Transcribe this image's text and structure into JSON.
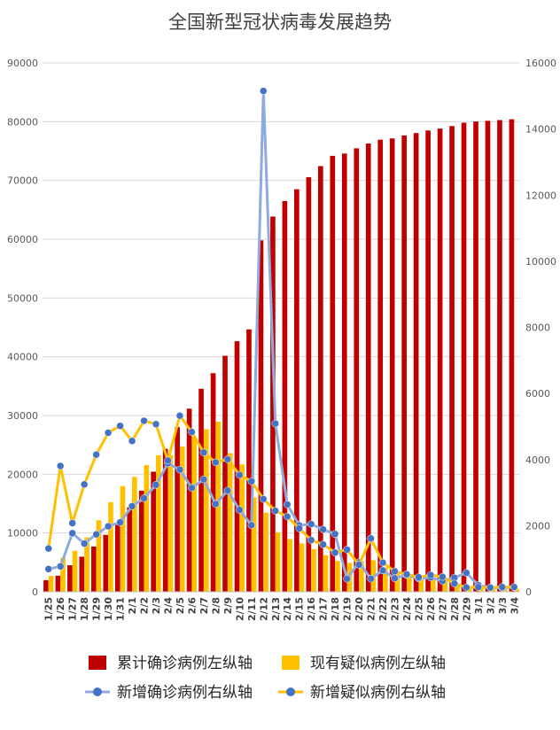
{
  "chart_data": {
    "type": "bar",
    "title": "全国新型冠状病毒发展趋势",
    "x": [
      "1/25",
      "1/26",
      "1/27",
      "1/28",
      "1/29",
      "1/30",
      "1/31",
      "2/1",
      "2/2",
      "2/3",
      "2/4",
      "2/5",
      "2/6",
      "2/7",
      "2/8",
      "2/9",
      "2/10",
      "2/11",
      "2/12",
      "2/13",
      "2/14",
      "2/15",
      "2/16",
      "2/17",
      "2/18",
      "2/19",
      "2/20",
      "2/21",
      "2/22",
      "2/23",
      "2/24",
      "2/25",
      "2/26",
      "2/27",
      "2/28",
      "2/29",
      "3/1",
      "3/2",
      "3/3",
      "3/4"
    ],
    "y_left": {
      "min": 0,
      "max": 90000,
      "ticks": [
        0,
        10000,
        20000,
        30000,
        40000,
        50000,
        60000,
        70000,
        80000,
        90000
      ]
    },
    "y_right": {
      "min": 0,
      "max": 16000,
      "ticks": [
        0,
        2000,
        4000,
        6000,
        8000,
        10000,
        12000,
        14000,
        16000
      ]
    },
    "grid": true,
    "legend_position": "bottom",
    "series": [
      {
        "name": "累计确诊病例左纵轴",
        "type": "bar",
        "axis": "left",
        "color": "#c00000",
        "values": [
          1975,
          2744,
          4515,
          5974,
          7711,
          9692,
          11791,
          14380,
          17205,
          20438,
          24324,
          28018,
          31161,
          34546,
          37198,
          40171,
          42638,
          44653,
          59804,
          63851,
          66492,
          68500,
          70548,
          72436,
          74185,
          74576,
          75465,
          76288,
          76936,
          77150,
          77658,
          78064,
          78497,
          78824,
          79251,
          79824,
          80026,
          80151,
          80270,
          80409
        ]
      },
      {
        "name": "现有疑似病例左纵轴",
        "type": "bar",
        "axis": "left",
        "color": "#ffc000",
        "values": [
          2684,
          5794,
          6973,
          9239,
          12167,
          15238,
          17988,
          19544,
          21558,
          23214,
          23260,
          24702,
          26359,
          27657,
          28942,
          23589,
          21675,
          16067,
          13435,
          10109,
          8969,
          8228,
          7264,
          6242,
          5248,
          4922,
          5206,
          5365,
          4148,
          3434,
          2824,
          2491,
          2358,
          2308,
          1418,
          851,
          715,
          587,
          520,
          522
        ]
      },
      {
        "name": "新增确诊病例右纵轴",
        "type": "line",
        "axis": "right",
        "color": "#8faadc",
        "marker": "#4472c4",
        "values": [
          688,
          769,
          1771,
          1459,
          1737,
          1982,
          2102,
          2590,
          2829,
          3235,
          3887,
          3694,
          3143,
          3399,
          2656,
          3062,
          2478,
          2015,
          15152,
          5090,
          2641,
          2009,
          2048,
          1886,
          1749,
          394,
          889,
          397,
          648,
          409,
          508,
          406,
          433,
          327,
          427,
          573,
          202,
          125,
          119,
          139
        ]
      },
      {
        "name": "新增疑似病例右纵轴",
        "type": "line",
        "axis": "right",
        "color": "#ffc000",
        "marker": "#4472c4",
        "values": [
          1309,
          3806,
          2077,
          3248,
          4148,
          4812,
          5019,
          4562,
          5173,
          5072,
          3971,
          5328,
          4833,
          4214,
          3916,
          4008,
          3536,
          3342,
          2807,
          2450,
          2277,
          1918,
          1563,
          1432,
          1185,
          1277,
          820,
          1614,
          882,
          620,
          530,
          439,
          508,
          452,
          248,
          132,
          141,
          129,
          143,
          143
        ]
      }
    ]
  }
}
